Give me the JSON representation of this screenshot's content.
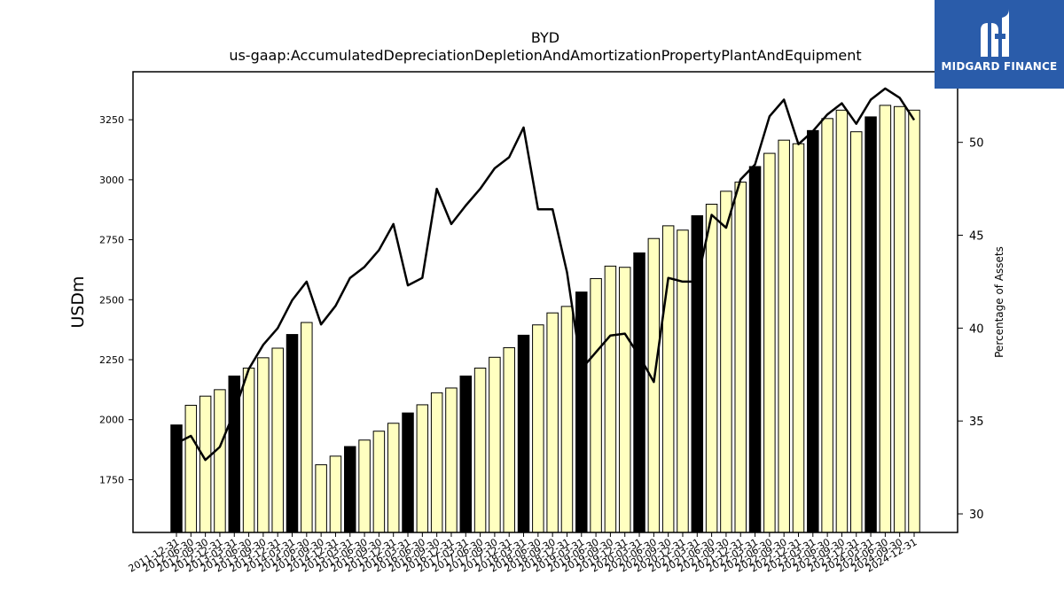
{
  "chart_data": {
    "type": "bar",
    "title": "BYD",
    "subtitle": "us-gaap:AccumulatedDepreciationDepletionAndAmortizationPropertyPlantAndEquipment",
    "ylabel": "USDm",
    "y2label": "Percentage of Assets",
    "ylim": [
      1530,
      3450
    ],
    "y2lim": [
      29,
      53.8
    ],
    "yticks": [
      1750,
      2000,
      2250,
      2500,
      2750,
      3000,
      3250
    ],
    "y2ticks": [
      30,
      35,
      40,
      45,
      50
    ],
    "grid": false,
    "categories": [
      "2011-12-31",
      "2012-06-30",
      "2012-09-30",
      "2012-12-31",
      "2013-03-31",
      "2013-06-30",
      "2013-09-30",
      "2013-12-31",
      "2014-03-31",
      "2014-06-30",
      "2014-09-30",
      "2014-12-31",
      "2015-03-31",
      "2015-06-30",
      "2015-09-30",
      "2015-12-31",
      "2016-03-31",
      "2016-06-30",
      "2016-09-30",
      "2016-12-31",
      "2017-03-31",
      "2017-06-30",
      "2017-09-30",
      "2017-12-31",
      "2018-03-31",
      "2018-06-30",
      "2018-09-30",
      "2018-12-31",
      "2019-03-31",
      "2019-06-30",
      "2019-09-30",
      "2019-12-31",
      "2020-03-31",
      "2020-06-30",
      "2020-09-30",
      "2020-12-31",
      "2021-03-31",
      "2021-06-30",
      "2021-09-30",
      "2021-12-31",
      "2022-03-31",
      "2022-06-30",
      "2022-09-30",
      "2022-12-31",
      "2023-03-31",
      "2023-06-30",
      "2023-09-30",
      "2023-12-31",
      "2024-03-31",
      "2024-06-30",
      "2024-09-30",
      "2024-12-31"
    ],
    "series": [
      {
        "type": "bar",
        "axis": "left",
        "values": [
          1978,
          2060,
          2098,
          2125,
          2182,
          2215,
          2258,
          2298,
          2355,
          2405,
          1812,
          1848,
          1888,
          1915,
          1952,
          1985,
          2028,
          2062,
          2112,
          2132,
          2182,
          2215,
          2260,
          2300,
          2352,
          2395,
          2445,
          2472,
          2532,
          2588,
          2640,
          2635,
          2695,
          2755,
          2808,
          2790,
          2850,
          2898,
          2952,
          2990,
          3055,
          3110,
          3165,
          3150,
          3205,
          3255,
          3290,
          3200,
          3262,
          3310,
          3305,
          3290
        ]
      },
      {
        "type": "line",
        "axis": "right",
        "values": [
          33.8,
          34.2,
          32.9,
          33.6,
          35.5,
          37.8,
          39.1,
          40.0,
          41.5,
          42.5,
          40.2,
          41.2,
          42.7,
          43.3,
          44.2,
          45.6,
          42.3,
          42.7,
          47.5,
          45.6,
          46.6,
          47.5,
          48.6,
          49.2,
          50.8,
          46.4,
          46.4,
          43.0,
          37.8,
          38.7,
          39.6,
          39.7,
          38.5,
          37.1,
          42.7,
          42.5,
          42.5,
          46.1,
          45.4,
          48.0,
          48.8,
          51.4,
          52.3,
          49.9,
          50.6,
          51.5,
          52.1,
          51.0,
          52.3,
          52.9,
          52.4,
          51.2
        ]
      }
    ],
    "bar_fill": "#ffffc0",
    "bar_fill_alt": "#000000",
    "bar_dark_every": 4,
    "line_color": "#000000"
  },
  "logo": {
    "text": "MIDGARD FINANCE",
    "background": "#2a5caa"
  }
}
